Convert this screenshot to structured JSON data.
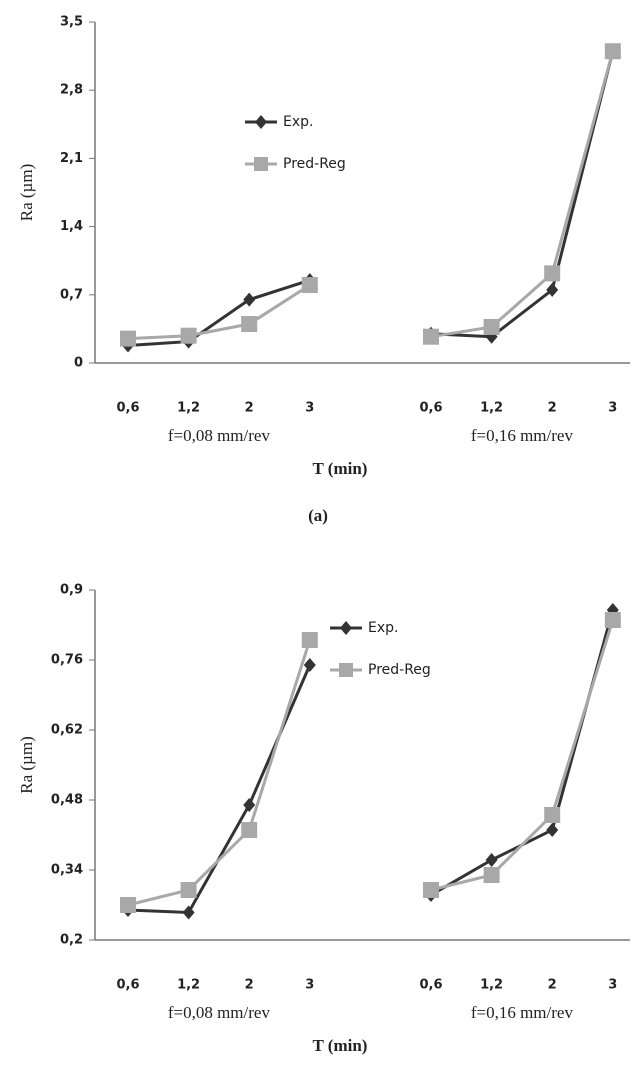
{
  "chart_data": [
    {
      "type": "line",
      "caption": "(a)",
      "x_label": "T (min)",
      "y_label": "Ra (µm)",
      "categories": [
        "0,6",
        "1,2",
        "2",
        "3",
        null,
        "0,6",
        "1,2",
        "2",
        "3"
      ],
      "group_labels": [
        "f=0,08 mm/rev",
        "f=0,16 mm/rev"
      ],
      "ylim": [
        0,
        3.5
      ],
      "yticks": [
        0,
        {
          "value": 0.7,
          "label": "0,7"
        },
        {
          "value": 1.4,
          "label": "1,4"
        },
        {
          "value": 2.1,
          "label": "2,1"
        },
        {
          "value": 2.8,
          "label": "2,8"
        },
        {
          "value": 3.5,
          "label": "3,5"
        }
      ],
      "grid": false,
      "series": [
        {
          "name": "Exp.",
          "color": "#333333",
          "marker": "diamond",
          "values": [
            0.18,
            0.22,
            0.65,
            0.85,
            null,
            0.3,
            0.27,
            0.75,
            3.2
          ]
        },
        {
          "name": "Pred-Reg",
          "color": "#a8a8a8",
          "marker": "square",
          "values": [
            0.25,
            0.28,
            0.4,
            0.8,
            null,
            0.27,
            0.37,
            0.92,
            3.2
          ]
        }
      ]
    },
    {
      "type": "line",
      "x_label": "T (min)",
      "y_label": "Ra (µm)",
      "categories": [
        "0,6",
        "1,2",
        "2",
        "3",
        null,
        "0,6",
        "1,2",
        "2",
        "3"
      ],
      "group_labels": [
        "f=0,08 mm/rev",
        "f=0,16 mm/rev"
      ],
      "ylim": [
        0.2,
        0.9
      ],
      "yticks": [
        {
          "value": 0.2,
          "label": "0,2"
        },
        {
          "value": 0.34,
          "label": "0,34"
        },
        {
          "value": 0.48,
          "label": "0,48"
        },
        {
          "value": 0.62,
          "label": "0,62"
        },
        {
          "value": 0.76,
          "label": "0,76"
        },
        {
          "value": 0.9,
          "label": "0,9"
        }
      ],
      "grid": false,
      "series": [
        {
          "name": "Exp.",
          "color": "#333333",
          "marker": "diamond",
          "values": [
            0.26,
            0.255,
            0.47,
            0.75,
            null,
            0.29,
            0.36,
            0.42,
            0.86
          ]
        },
        {
          "name": "Pred-Reg",
          "color": "#a8a8a8",
          "marker": "square",
          "values": [
            0.27,
            0.3,
            0.42,
            0.8,
            null,
            0.3,
            0.33,
            0.45,
            0.84
          ]
        }
      ]
    }
  ]
}
